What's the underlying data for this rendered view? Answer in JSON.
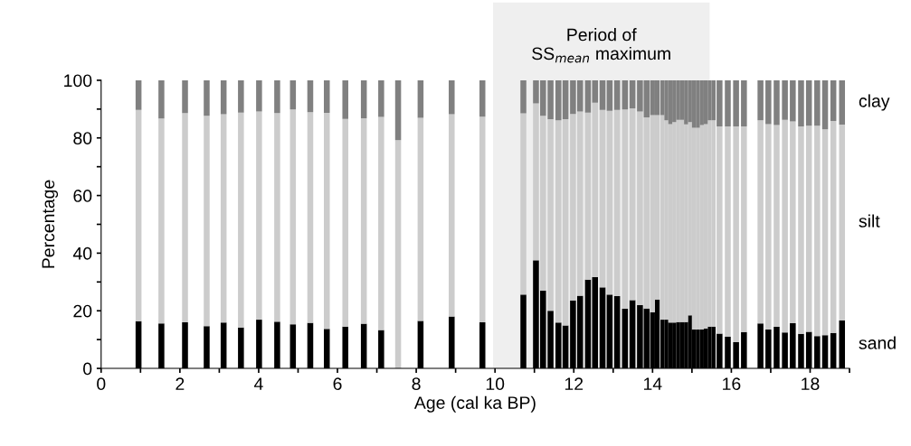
{
  "chart_data": {
    "type": "bar",
    "stacked": true,
    "xlabel": "Age (cal ka BP)",
    "ylabel": "Percentage",
    "x": [
      0.95,
      1.53,
      2.13,
      2.68,
      3.11,
      3.55,
      4.01,
      4.47,
      4.87,
      5.31,
      5.73,
      6.2,
      6.67,
      7.11,
      7.54,
      8.11,
      8.9,
      9.68,
      10.72,
      11.04,
      11.22,
      11.41,
      11.61,
      11.79,
      11.98,
      12.16,
      12.36,
      12.54,
      12.73,
      12.91,
      13.1,
      13.3,
      13.49,
      13.68,
      13.85,
      14.0,
      14.12,
      14.25,
      14.35,
      14.45,
      14.55,
      14.65,
      14.75,
      14.85,
      14.95,
      15.05,
      15.15,
      15.25,
      15.35,
      15.45,
      15.55,
      15.7,
      15.91,
      16.12,
      16.32,
      16.74,
      16.94,
      17.15,
      17.36,
      17.56,
      17.77,
      17.97,
      18.18,
      18.38,
      18.59,
      18.81
    ],
    "series": [
      {
        "name": "sand",
        "color": "#000000",
        "values": [
          16.4,
          15.6,
          16.0,
          14.7,
          15.9,
          14.2,
          16.9,
          16.2,
          15.3,
          15.8,
          13.7,
          14.5,
          15.5,
          13.3,
          null,
          16.5,
          18.0,
          16.0,
          25.6,
          37.5,
          27.0,
          20.0,
          15.9,
          14.9,
          23.6,
          25.2,
          30.8,
          31.7,
          28.1,
          25.6,
          25.1,
          20.7,
          23.7,
          22.0,
          20.8,
          19.5,
          23.9,
          16.9,
          16.9,
          15.9,
          15.9,
          16.1,
          16.1,
          16.1,
          18.4,
          13.5,
          13.5,
          13.6,
          13.8,
          14.5,
          14.5,
          12.1,
          11.0,
          9.1,
          12.6,
          15.6,
          13.5,
          14.4,
          12.5,
          15.7,
          12.0,
          12.7,
          11.2,
          11.5,
          12.3,
          16.6
        ]
      },
      {
        "name": "silt",
        "color": "#cccccc",
        "values": [
          73.3,
          71.1,
          72.6,
          73.0,
          72.3,
          74.6,
          72.3,
          72.4,
          74.6,
          73.1,
          75.0,
          72.1,
          71.3,
          74.0,
          79.2,
          70.5,
          70.2,
          71.4,
          62.9,
          54.5,
          60.7,
          66.5,
          70.2,
          71.6,
          64.7,
          64.0,
          58.0,
          60.5,
          61.6,
          63.8,
          64.6,
          69.2,
          66.6,
          67.2,
          66.3,
          68.4,
          64.0,
          71.0,
          69.2,
          68.9,
          69.6,
          70.2,
          70.2,
          68.6,
          67.1,
          70.0,
          70.0,
          70.9,
          71.0,
          71.6,
          71.6,
          71.9,
          73.0,
          74.9,
          71.4,
          70.5,
          71.3,
          70.1,
          73.8,
          70.0,
          72.0,
          71.5,
          73.0,
          71.5,
          73.6,
          68.0
        ]
      },
      {
        "name": "clay",
        "color": "#808080",
        "values": [
          10.3,
          13.3,
          11.4,
          12.3,
          11.8,
          11.2,
          10.8,
          11.4,
          10.1,
          11.1,
          11.3,
          13.4,
          13.2,
          12.7,
          20.8,
          13.0,
          11.8,
          12.6,
          11.5,
          8.0,
          12.3,
          13.5,
          13.9,
          13.5,
          11.7,
          10.8,
          11.2,
          7.8,
          10.3,
          10.6,
          10.3,
          10.1,
          9.7,
          10.8,
          12.9,
          12.1,
          12.1,
          12.1,
          13.9,
          15.2,
          14.5,
          13.7,
          13.7,
          15.3,
          14.5,
          16.5,
          16.5,
          15.5,
          15.2,
          13.9,
          13.9,
          16.0,
          16.0,
          16.0,
          16.0,
          13.9,
          15.2,
          15.5,
          13.7,
          14.3,
          16.0,
          15.8,
          15.8,
          17.0,
          14.1,
          15.4
        ]
      }
    ],
    "xlim": [
      0,
      19
    ],
    "xticks": [
      0,
      {
        "value": 1,
        "label": null
      },
      2,
      {
        "value": 3,
        "label": null
      },
      4,
      {
        "value": 5,
        "label": null
      },
      6,
      {
        "value": 7,
        "label": null
      },
      8,
      {
        "value": 9,
        "label": null
      },
      10,
      {
        "value": 11,
        "label": null
      },
      12,
      {
        "value": 13,
        "label": null
      },
      14,
      {
        "value": 15,
        "label": null
      },
      16,
      {
        "value": 17,
        "label": null
      },
      18,
      {
        "value": 19,
        "label": null
      }
    ],
    "ylim": [
      0,
      100
    ],
    "yticks": [
      0,
      {
        "value": 10,
        "label": null
      },
      20,
      {
        "value": 30,
        "label": null
      },
      40,
      {
        "value": 50,
        "label": null
      },
      60,
      {
        "value": 70,
        "label": null
      },
      80,
      {
        "value": 90,
        "label": null
      },
      100
    ],
    "bands": [
      {
        "axis": "x",
        "from": 9.95,
        "to": 15.45,
        "label": "Period of\nSS$_{mean}$ maximum",
        "color": "#efefef"
      }
    ],
    "grid": false,
    "legend": false
  }
}
